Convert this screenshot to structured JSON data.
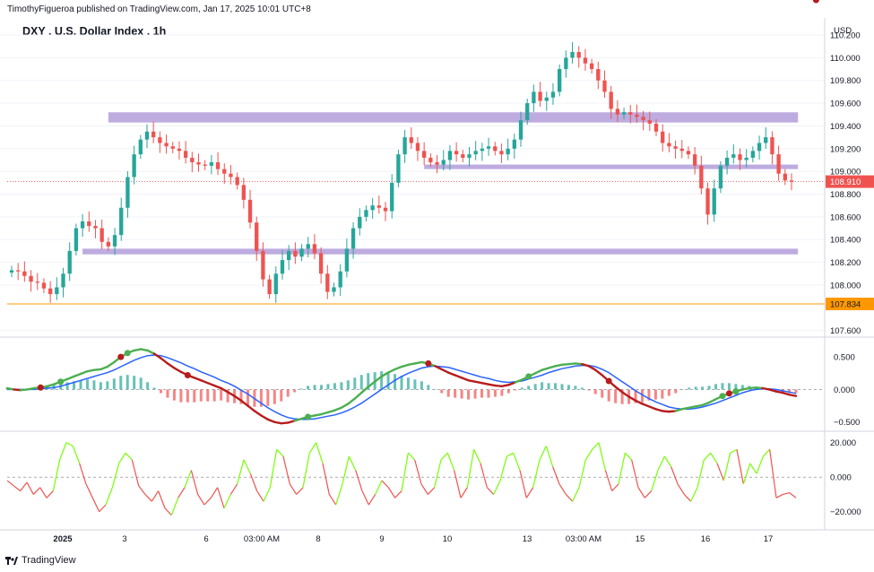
{
  "header": {
    "publisher_line": "TimothyFigueroa published on TradingView.com, Jan 17, 2025 10:01 UTC+8",
    "symbol_title": "DXY . U.S. Dollar Index . 1h",
    "currency": "USD",
    "footer_brand": "TradingView"
  },
  "colors": {
    "up_candle": "#26a69a",
    "down_candle": "#ef5350",
    "zone": "#b39ddb",
    "support_line": "#ff9800",
    "price_label": "#ef5350",
    "support_label": "#ff9800",
    "fast_up": "#4caf50",
    "fast_down": "#b71c1c",
    "slow_line": "#2962ff",
    "osc_up": "#76ff03",
    "osc_down": "#ef5350"
  },
  "chart_data": [
    {
      "type": "candlestick",
      "title": "DXY . U.S. Dollar Index . 1h",
      "y_ticks": [
        "110.200",
        "110.000",
        "109.800",
        "109.600",
        "109.400",
        "109.200",
        "109.000",
        "108.800",
        "108.600",
        "108.400",
        "108.200",
        "108.000",
        "107.600"
      ],
      "ylim": [
        107.55,
        110.35
      ],
      "x_ticks": [
        "2025",
        "3",
        "6",
        "03:00 AM",
        "8",
        "9",
        "10",
        "13",
        "03:00 AM",
        "15",
        "16",
        "17"
      ],
      "last_price": "108.910",
      "support_price": "107.834",
      "support_level": 107.834,
      "zones": [
        {
          "from_bar": 15,
          "to_bar": 122,
          "low": 109.43,
          "high": 109.52
        },
        {
          "from_bar": 64,
          "to_bar": 122,
          "low": 109.02,
          "high": 109.06
        },
        {
          "from_bar": 11,
          "to_bar": 122,
          "low": 108.27,
          "high": 108.32
        }
      ],
      "close_path": [
        108.13,
        108.12,
        108.08,
        108.03,
        108.02,
        107.97,
        107.92,
        107.98,
        108.1,
        108.3,
        108.5,
        108.56,
        108.52,
        108.5,
        108.38,
        108.34,
        108.44,
        108.68,
        108.95,
        109.15,
        109.28,
        109.35,
        109.3,
        109.25,
        109.22,
        109.2,
        109.18,
        109.12,
        109.08,
        109.06,
        109.05,
        109.08,
        109.02,
        108.98,
        108.95,
        108.88,
        108.75,
        108.55,
        108.3,
        108.05,
        107.92,
        108.1,
        108.22,
        108.3,
        108.25,
        108.32,
        108.36,
        108.28,
        108.1,
        107.94,
        107.98,
        108.12,
        108.32,
        108.5,
        108.6,
        108.66,
        108.7,
        108.68,
        108.65,
        108.9,
        109.15,
        109.3,
        109.25,
        109.18,
        109.12,
        109.08,
        109.06,
        109.1,
        109.18,
        109.15,
        109.12,
        109.15,
        109.18,
        109.2,
        109.22,
        109.18,
        109.15,
        109.2,
        109.28,
        109.45,
        109.6,
        109.7,
        109.62,
        109.65,
        109.7,
        109.9,
        110.0,
        110.05,
        110.0,
        109.95,
        109.9,
        109.8,
        109.7,
        109.55,
        109.5,
        109.52,
        109.5,
        109.48,
        109.45,
        109.42,
        109.35,
        109.25,
        109.22,
        109.2,
        109.18,
        109.15,
        109.05,
        108.85,
        108.62,
        108.85,
        109.05,
        109.12,
        109.15,
        109.1,
        109.12,
        109.18,
        109.25,
        109.3,
        109.15,
        108.98,
        108.92,
        108.91
      ],
      "up_label": "20.000",
      "mid_label": "0.000",
      "down_label": "−20.000"
    },
    {
      "type": "line",
      "panel": "macd",
      "y_ticks": [
        "0.500",
        "0.000",
        "−0.500"
      ],
      "ylim": [
        -0.6,
        0.75
      ],
      "fast": [
        0.02,
        0.0,
        -0.01,
        0.0,
        0.02,
        0.03,
        0.05,
        0.08,
        0.12,
        0.16,
        0.2,
        0.24,
        0.28,
        0.3,
        0.31,
        0.35,
        0.42,
        0.5,
        0.56,
        0.6,
        0.62,
        0.6,
        0.55,
        0.48,
        0.4,
        0.33,
        0.27,
        0.22,
        0.18,
        0.14,
        0.1,
        0.06,
        0.02,
        -0.04,
        -0.1,
        -0.17,
        -0.25,
        -0.33,
        -0.4,
        -0.46,
        -0.5,
        -0.52,
        -0.51,
        -0.48,
        -0.45,
        -0.42,
        -0.4,
        -0.38,
        -0.35,
        -0.32,
        -0.28,
        -0.22,
        -0.14,
        -0.05,
        0.04,
        0.12,
        0.2,
        0.26,
        0.31,
        0.35,
        0.38,
        0.4,
        0.42,
        0.4,
        0.36,
        0.31,
        0.26,
        0.22,
        0.18,
        0.14,
        0.12,
        0.1,
        0.08,
        0.06,
        0.05,
        0.07,
        0.11,
        0.15,
        0.2,
        0.25,
        0.3,
        0.33,
        0.36,
        0.38,
        0.39,
        0.4,
        0.39,
        0.36,
        0.3,
        0.22,
        0.13,
        0.04,
        -0.04,
        -0.11,
        -0.17,
        -0.22,
        -0.26,
        -0.3,
        -0.33,
        -0.34,
        -0.33,
        -0.3,
        -0.28,
        -0.26,
        -0.24,
        -0.2,
        -0.15,
        -0.1,
        -0.06,
        -0.03,
        0.0,
        0.02,
        0.03,
        0.02,
        0.0,
        -0.03,
        -0.05,
        -0.08,
        -0.1
      ],
      "slow": [
        0.0,
        0.0,
        0.0,
        0.0,
        0.0,
        0.01,
        0.02,
        0.03,
        0.05,
        0.08,
        0.11,
        0.14,
        0.17,
        0.2,
        0.23,
        0.26,
        0.3,
        0.35,
        0.4,
        0.45,
        0.49,
        0.52,
        0.53,
        0.52,
        0.49,
        0.45,
        0.41,
        0.36,
        0.32,
        0.27,
        0.23,
        0.19,
        0.14,
        0.1,
        0.05,
        -0.01,
        -0.07,
        -0.14,
        -0.21,
        -0.28,
        -0.34,
        -0.39,
        -0.43,
        -0.45,
        -0.46,
        -0.46,
        -0.45,
        -0.43,
        -0.41,
        -0.39,
        -0.36,
        -0.32,
        -0.27,
        -0.21,
        -0.14,
        -0.07,
        0.0,
        0.07,
        0.14,
        0.2,
        0.25,
        0.29,
        0.33,
        0.35,
        0.36,
        0.35,
        0.34,
        0.31,
        0.28,
        0.25,
        0.22,
        0.19,
        0.17,
        0.14,
        0.12,
        0.11,
        0.12,
        0.13,
        0.16,
        0.19,
        0.22,
        0.26,
        0.29,
        0.32,
        0.34,
        0.36,
        0.37,
        0.37,
        0.35,
        0.31,
        0.26,
        0.19,
        0.12,
        0.05,
        -0.02,
        -0.08,
        -0.14,
        -0.19,
        -0.23,
        -0.27,
        -0.29,
        -0.3,
        -0.3,
        -0.29,
        -0.27,
        -0.24,
        -0.21,
        -0.17,
        -0.13,
        -0.09,
        -0.05,
        -0.02,
        0.0,
        0.01,
        0.01,
        0.0,
        -0.02,
        -0.04,
        -0.06
      ],
      "signal_dots": [
        {
          "bar": 5,
          "dir": "down"
        },
        {
          "bar": 8,
          "dir": "up"
        },
        {
          "bar": 17,
          "dir": "down"
        },
        {
          "bar": 18,
          "dir": "up"
        },
        {
          "bar": 27,
          "dir": "down"
        },
        {
          "bar": 45,
          "dir": "up"
        },
        {
          "bar": 63,
          "dir": "down"
        },
        {
          "bar": 78,
          "dir": "up"
        },
        {
          "bar": 90,
          "dir": "down"
        },
        {
          "bar": 107,
          "dir": "up"
        },
        {
          "bar": 108,
          "dir": "down"
        },
        {
          "bar": 109,
          "dir": "up"
        },
        {
          "bar": 121,
          "dir": "down"
        }
      ]
    },
    {
      "type": "line",
      "panel": "oscillator",
      "y_ticks": [
        "20.000",
        "0.000",
        "−20.000"
      ],
      "ylim": [
        -30,
        25
      ],
      "values": [
        -2,
        -5,
        -8,
        -3,
        -10,
        -6,
        -12,
        -8,
        10,
        20,
        18,
        8,
        -4,
        -12,
        -20,
        -16,
        -6,
        8,
        14,
        10,
        -5,
        -10,
        -14,
        -8,
        -18,
        -22,
        -12,
        -6,
        4,
        -10,
        -16,
        -12,
        -6,
        -18,
        -10,
        -4,
        10,
        2,
        -8,
        -14,
        -6,
        16,
        12,
        -4,
        -10,
        -6,
        14,
        20,
        8,
        -10,
        -16,
        -4,
        12,
        4,
        -8,
        -16,
        -10,
        -2,
        -6,
        -12,
        -8,
        14,
        10,
        -4,
        -10,
        -6,
        10,
        14,
        4,
        -12,
        -6,
        16,
        8,
        -6,
        -10,
        -2,
        12,
        14,
        4,
        -12,
        -6,
        10,
        18,
        6,
        -4,
        -10,
        -14,
        -6,
        10,
        16,
        20,
        4,
        -8,
        -4,
        14,
        10,
        -6,
        -12,
        -8,
        4,
        12,
        6,
        -4,
        -10,
        -14,
        -6,
        10,
        14,
        8,
        -2,
        14,
        16,
        -4,
        8,
        2,
        12,
        16,
        -12,
        -10,
        -9,
        -12
      ]
    }
  ]
}
